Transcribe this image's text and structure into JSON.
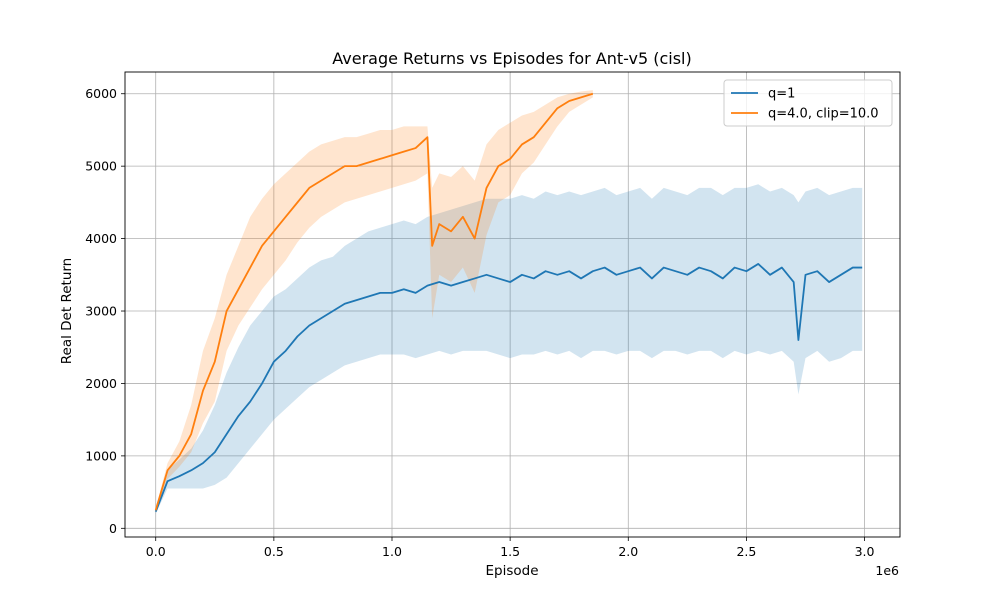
{
  "chart_data": {
    "type": "line",
    "title": "Average Returns vs Episodes for Ant-v5 (cisl)",
    "xlabel": "Episode",
    "ylabel": "Real Det Return",
    "x_offset_label": "1e6",
    "xlim": [
      -0.13,
      3.15
    ],
    "ylim": [
      -120,
      6300
    ],
    "xticks": [
      0.0,
      0.5,
      1.0,
      1.5,
      2.0,
      2.5,
      3.0
    ],
    "xtick_labels": [
      "0.0",
      "0.5",
      "1.0",
      "1.5",
      "2.0",
      "2.5",
      "3.0"
    ],
    "yticks": [
      0,
      1000,
      2000,
      3000,
      4000,
      5000,
      6000
    ],
    "ytick_labels": [
      "0",
      "1000",
      "2000",
      "3000",
      "4000",
      "5000",
      "6000"
    ],
    "grid": true,
    "legend_position": "top-right",
    "series": [
      {
        "name": "q=1",
        "color": "#1f77b4",
        "band_color": "#1f77b4",
        "x": [
          0.0,
          0.05,
          0.1,
          0.15,
          0.2,
          0.25,
          0.3,
          0.35,
          0.4,
          0.45,
          0.5,
          0.55,
          0.6,
          0.65,
          0.7,
          0.75,
          0.8,
          0.85,
          0.9,
          0.95,
          1.0,
          1.05,
          1.1,
          1.15,
          1.2,
          1.25,
          1.3,
          1.35,
          1.4,
          1.45,
          1.5,
          1.55,
          1.6,
          1.65,
          1.7,
          1.75,
          1.8,
          1.85,
          1.9,
          1.95,
          2.0,
          2.05,
          2.1,
          2.15,
          2.2,
          2.25,
          2.3,
          2.35,
          2.4,
          2.45,
          2.5,
          2.55,
          2.6,
          2.65,
          2.7,
          2.72,
          2.75,
          2.8,
          2.85,
          2.9,
          2.95,
          2.99
        ],
        "y": [
          230,
          650,
          720,
          800,
          900,
          1050,
          1300,
          1550,
          1750,
          2000,
          2300,
          2450,
          2650,
          2800,
          2900,
          3000,
          3100,
          3150,
          3200,
          3250,
          3250,
          3300,
          3250,
          3350,
          3400,
          3350,
          3400,
          3450,
          3500,
          3450,
          3400,
          3500,
          3450,
          3550,
          3500,
          3550,
          3450,
          3550,
          3600,
          3500,
          3550,
          3600,
          3450,
          3600,
          3550,
          3500,
          3600,
          3550,
          3450,
          3600,
          3550,
          3650,
          3500,
          3600,
          3400,
          2600,
          3500,
          3550,
          3400,
          3500,
          3600,
          3600
        ],
        "upper": [
          260,
          800,
          950,
          1100,
          1350,
          1700,
          2150,
          2500,
          2800,
          3000,
          3200,
          3300,
          3450,
          3600,
          3700,
          3750,
          3900,
          4000,
          4100,
          4150,
          4200,
          4250,
          4200,
          4300,
          4350,
          4400,
          4450,
          4500,
          4550,
          4550,
          4550,
          4600,
          4550,
          4650,
          4600,
          4650,
          4600,
          4650,
          4700,
          4600,
          4650,
          4700,
          4550,
          4700,
          4650,
          4600,
          4700,
          4700,
          4600,
          4700,
          4700,
          4750,
          4650,
          4700,
          4600,
          4500,
          4650,
          4700,
          4600,
          4650,
          4700,
          4700
        ],
        "lower": [
          200,
          550,
          550,
          550,
          550,
          600,
          700,
          900,
          1100,
          1300,
          1500,
          1650,
          1800,
          1950,
          2050,
          2150,
          2250,
          2300,
          2350,
          2400,
          2400,
          2400,
          2350,
          2400,
          2450,
          2400,
          2450,
          2450,
          2450,
          2400,
          2350,
          2400,
          2400,
          2450,
          2400,
          2450,
          2350,
          2450,
          2450,
          2400,
          2450,
          2450,
          2350,
          2450,
          2450,
          2400,
          2450,
          2450,
          2350,
          2450,
          2400,
          2450,
          2400,
          2450,
          2300,
          1850,
          2350,
          2450,
          2300,
          2350,
          2450,
          2450
        ]
      },
      {
        "name": "q=4.0, clip=10.0",
        "color": "#ff7f0e",
        "band_color": "#ff7f0e",
        "x": [
          0.0,
          0.05,
          0.1,
          0.15,
          0.2,
          0.25,
          0.3,
          0.35,
          0.4,
          0.45,
          0.5,
          0.55,
          0.6,
          0.65,
          0.7,
          0.75,
          0.8,
          0.85,
          0.9,
          0.95,
          1.0,
          1.05,
          1.1,
          1.15,
          1.17,
          1.2,
          1.25,
          1.3,
          1.35,
          1.4,
          1.45,
          1.5,
          1.55,
          1.6,
          1.65,
          1.7,
          1.75,
          1.8,
          1.85
        ],
        "y": [
          250,
          800,
          1000,
          1300,
          1900,
          2300,
          3000,
          3300,
          3600,
          3900,
          4100,
          4300,
          4500,
          4700,
          4800,
          4900,
          5000,
          5000,
          5050,
          5100,
          5150,
          5200,
          5250,
          5400,
          3900,
          4200,
          4100,
          4300,
          4000,
          4700,
          5000,
          5100,
          5300,
          5400,
          5600,
          5800,
          5900,
          5950,
          6000
        ],
        "upper": [
          280,
          900,
          1200,
          1700,
          2450,
          2900,
          3500,
          3900,
          4300,
          4550,
          4750,
          4900,
          5050,
          5200,
          5300,
          5350,
          5400,
          5400,
          5450,
          5500,
          5500,
          5550,
          5550,
          5550,
          4700,
          4900,
          4850,
          5000,
          4800,
          5300,
          5500,
          5600,
          5700,
          5750,
          5850,
          5950,
          6000,
          6030,
          6050
        ],
        "lower": [
          220,
          680,
          850,
          1050,
          1450,
          1750,
          2450,
          2800,
          3050,
          3300,
          3500,
          3700,
          3950,
          4150,
          4300,
          4400,
          4500,
          4550,
          4600,
          4650,
          4700,
          4750,
          4800,
          4900,
          2900,
          3500,
          3400,
          3600,
          3250,
          4050,
          4500,
          4600,
          4900,
          5050,
          5300,
          5550,
          5750,
          5850,
          5950
        ]
      }
    ]
  }
}
